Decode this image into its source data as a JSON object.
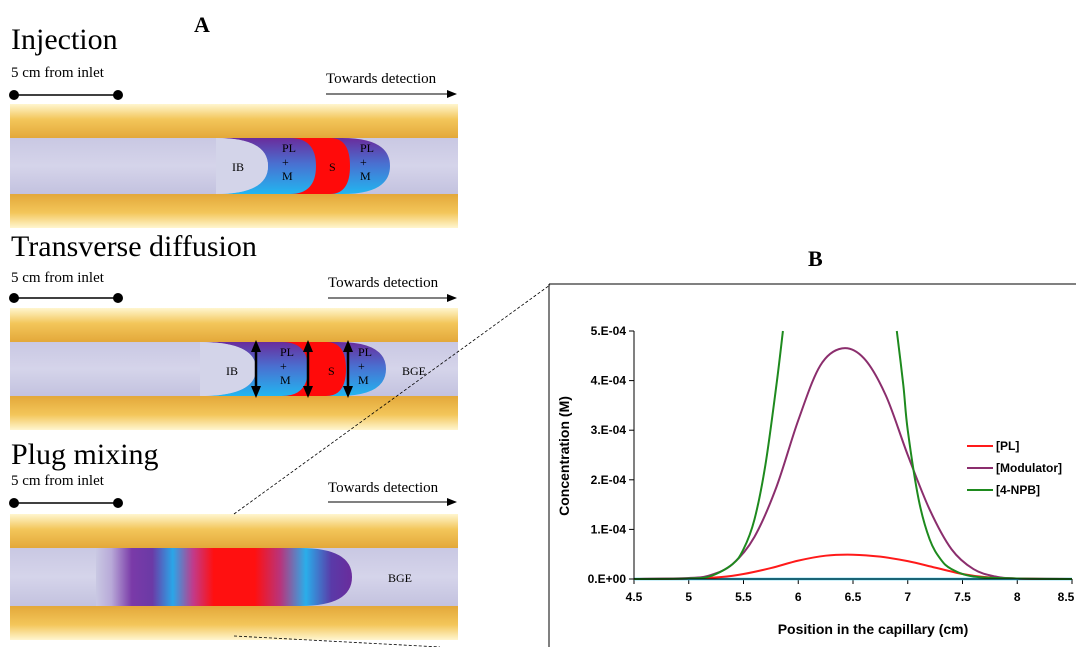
{
  "panel_a": {
    "label": "A",
    "stages": [
      {
        "title": "Injection",
        "distance_label": "5 cm from inlet",
        "direction_label": "Towards detection",
        "zones": [
          "IB",
          "PL\n+\nM",
          "S",
          "PL\n+\nM"
        ]
      },
      {
        "title": "Transverse diffusion",
        "distance_label": "5 cm from inlet",
        "direction_label": "Towards detection",
        "zones": [
          "IB",
          "PL\n+\nM",
          "S",
          "PL\n+\nM",
          "BGE"
        ]
      },
      {
        "title": "Plug mixing",
        "distance_label": "5 cm from inlet",
        "direction_label": "Towards detection",
        "zones": [
          "BGE"
        ]
      }
    ]
  },
  "panel_b": {
    "label": "B"
  },
  "colors": {
    "capillary_wall": "#f5cf62",
    "capillary_bore": "#c7c6e2",
    "ib_zone": "#cfd1e6",
    "pl_m_purple": "#6f2fa0",
    "pl_m_cyan": "#2ab4ee",
    "sample_red": "#ff0a0a"
  },
  "chart_data": {
    "type": "line",
    "title": "",
    "xlabel": "Position in the capillary (cm)",
    "ylabel": "Concentration (M)",
    "xlim": [
      4.5,
      8.5
    ],
    "ylim": [
      0,
      0.0005
    ],
    "x_ticks": [
      "4.5",
      "5",
      "5.5",
      "6",
      "6.5",
      "7",
      "7.5",
      "8",
      "8.5"
    ],
    "y_ticks": [
      "0.E+00",
      "1.E-04",
      "2.E-04",
      "3.E-04",
      "4.E-04",
      "5.E-04"
    ],
    "legend_position": "right",
    "grid": false,
    "series": [
      {
        "name": "[PL]",
        "color": "#ff1a1a",
        "x": [
          4.5,
          5.0,
          5.3,
          5.5,
          5.75,
          6.0,
          6.25,
          6.5,
          6.75,
          7.0,
          7.25,
          7.5,
          7.7,
          8.0,
          8.5
        ],
        "y": [
          0,
          1e-06,
          4e-06,
          1e-05,
          2.2e-05,
          3.7e-05,
          4.7e-05,
          4.9e-05,
          4.5e-05,
          3.6e-05,
          2.3e-05,
          1e-05,
          4e-06,
          1e-06,
          0
        ]
      },
      {
        "name": "[Modulator]",
        "color": "#8b2e6d",
        "x": [
          4.5,
          5.0,
          5.2,
          5.4,
          5.6,
          5.8,
          6.0,
          6.2,
          6.4,
          6.6,
          6.8,
          7.0,
          7.2,
          7.4,
          7.6,
          7.8,
          8.0,
          8.5
        ],
        "y": [
          0,
          2e-06,
          8e-06,
          3e-05,
          8.5e-05,
          0.000185,
          0.00032,
          0.00043,
          0.000465,
          0.000445,
          0.00037,
          0.00025,
          0.00014,
          6e-05,
          2e-05,
          5e-06,
          1e-06,
          0
        ]
      },
      {
        "name": "[4-NPB]",
        "color": "#1e8a1e",
        "x": [
          4.5,
          5.0,
          5.2,
          5.4,
          5.5,
          5.6,
          5.7,
          5.8,
          5.86,
          6.9,
          6.96,
          7.0,
          7.1,
          7.2,
          7.3,
          7.4,
          7.6,
          8.0,
          8.5
        ],
        "y": [
          0,
          1e-06,
          6e-06,
          3e-05,
          6e-05,
          0.00012,
          0.00023,
          0.00039,
          0.0005,
          0.0005,
          0.00039,
          0.0003,
          0.00016,
          8e-05,
          4e-05,
          2e-05,
          5e-06,
          1e-06,
          0
        ]
      },
      {
        "name": "",
        "color": "#33c8ec",
        "x": [
          4.5,
          8.5
        ],
        "y": [
          0,
          0
        ]
      }
    ]
  }
}
